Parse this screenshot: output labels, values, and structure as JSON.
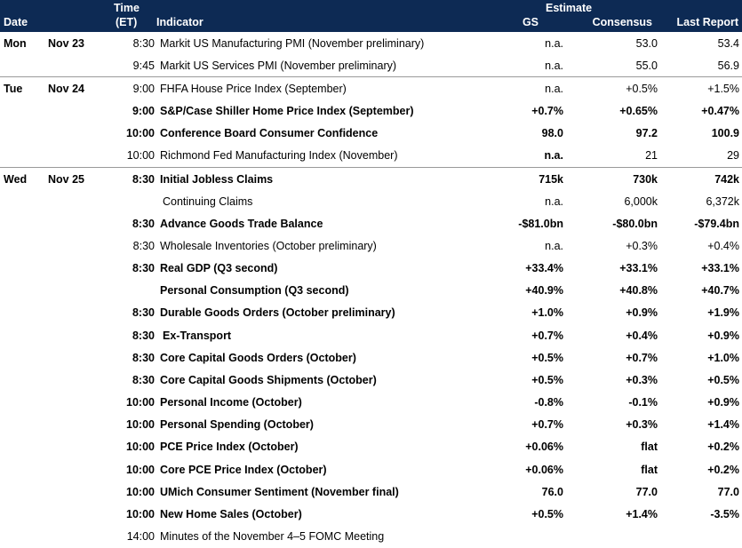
{
  "header": {
    "date": "Date",
    "time_line1": "Time",
    "time_line2": "(ET)",
    "indicator": "Indicator",
    "estimate": "Estimate",
    "gs": "GS",
    "consensus": "Consensus",
    "last_report": "Last Report"
  },
  "rows": [
    {
      "day": "Mon",
      "date": "Nov 23",
      "time": "8:30",
      "indicator": "Markit US Manufacturing PMI (November preliminary)",
      "gs": "n.a.",
      "consensus": "53.0",
      "last": "53.4",
      "bold": false,
      "indent": false
    },
    {
      "day": "",
      "date": "",
      "time": "9:45",
      "indicator": "Markit US Services PMI (November preliminary)",
      "gs": "n.a.",
      "consensus": "55.0",
      "last": "56.9",
      "bold": false,
      "indent": false
    },
    {
      "day": "Tue",
      "date": "Nov 24",
      "time": "9:00",
      "indicator": "FHFA House Price Index (September)",
      "gs": "n.a.",
      "consensus": "+0.5%",
      "last": "+1.5%",
      "bold": false,
      "indent": false
    },
    {
      "day": "",
      "date": "",
      "time": "9:00",
      "indicator": "S&P/Case Shiller Home Price Index (September)",
      "gs": "+0.7%",
      "consensus": "+0.65%",
      "last": "+0.47%",
      "bold": true,
      "indent": false
    },
    {
      "day": "",
      "date": "",
      "time": "10:00",
      "indicator": "Conference Board Consumer Confidence",
      "gs": "98.0",
      "consensus": "97.2",
      "last": "100.9",
      "bold": true,
      "indent": false
    },
    {
      "day": "",
      "date": "",
      "time": "10:00",
      "indicator": "Richmond Fed Manufacturing Index (November)",
      "gs": "n.a.",
      "consensus": "21",
      "last": "29",
      "bold": false,
      "indent": false,
      "gs_bold": true
    },
    {
      "day": "Wed",
      "date": "Nov 25",
      "time": "8:30",
      "indicator": "Initial Jobless Claims",
      "gs": "715k",
      "consensus": "730k",
      "last": "742k",
      "bold": true,
      "indent": false
    },
    {
      "day": "",
      "date": "",
      "time": "",
      "indicator": "Continuing Claims",
      "gs": "n.a.",
      "consensus": "6,000k",
      "last": "6,372k",
      "bold": false,
      "indent": true
    },
    {
      "day": "",
      "date": "",
      "time": "8:30",
      "indicator": "Advance Goods Trade Balance",
      "gs": "-$81.0bn",
      "consensus": "-$80.0bn",
      "last": "-$79.4bn",
      "bold": true,
      "indent": false
    },
    {
      "day": "",
      "date": "",
      "time": "8:30",
      "indicator": "Wholesale Inventories (October preliminary)",
      "gs": "n.a.",
      "consensus": "+0.3%",
      "last": "+0.4%",
      "bold": false,
      "indent": false
    },
    {
      "day": "",
      "date": "",
      "time": "8:30",
      "indicator": "Real GDP (Q3 second)",
      "gs": "+33.4%",
      "consensus": "+33.1%",
      "last": "+33.1%",
      "bold": true,
      "indent": false
    },
    {
      "day": "",
      "date": "",
      "time": "",
      "indicator": "Personal Consumption (Q3 second)",
      "gs": "+40.9%",
      "consensus": "+40.8%",
      "last": "+40.7%",
      "bold": true,
      "indent": false
    },
    {
      "day": "",
      "date": "",
      "time": "8:30",
      "indicator": "Durable Goods Orders (October preliminary)",
      "gs": "+1.0%",
      "consensus": "+0.9%",
      "last": "+1.9%",
      "bold": true,
      "indent": false
    },
    {
      "day": "",
      "date": "",
      "time": "8:30",
      "indicator": "Ex-Transport",
      "gs": "+0.7%",
      "consensus": "+0.4%",
      "last": "+0.9%",
      "bold": true,
      "indent": true
    },
    {
      "day": "",
      "date": "",
      "time": "8:30",
      "indicator": "Core Capital Goods Orders (October)",
      "gs": "+0.5%",
      "consensus": "+0.7%",
      "last": "+1.0%",
      "bold": true,
      "indent": false
    },
    {
      "day": "",
      "date": "",
      "time": "8:30",
      "indicator": "Core Capital Goods Shipments (October)",
      "gs": "+0.5%",
      "consensus": "+0.3%",
      "last": "+0.5%",
      "bold": true,
      "indent": false
    },
    {
      "day": "",
      "date": "",
      "time": "10:00",
      "indicator": "Personal Income (October)",
      "gs": "-0.8%",
      "consensus": "-0.1%",
      "last": "+0.9%",
      "bold": true,
      "indent": false
    },
    {
      "day": "",
      "date": "",
      "time": "10:00",
      "indicator": "Personal Spending (October)",
      "gs": "+0.7%",
      "consensus": "+0.3%",
      "last": "+1.4%",
      "bold": true,
      "indent": false
    },
    {
      "day": "",
      "date": "",
      "time": "10:00",
      "indicator": "PCE Price Index (October)",
      "gs": "+0.06%",
      "consensus": "flat",
      "last": "+0.2%",
      "bold": true,
      "indent": false
    },
    {
      "day": "",
      "date": "",
      "time": "10:00",
      "indicator": "Core PCE Price Index (October)",
      "gs": "+0.06%",
      "consensus": "flat",
      "last": "+0.2%",
      "bold": true,
      "indent": false
    },
    {
      "day": "",
      "date": "",
      "time": "10:00",
      "indicator": "UMich Consumer Sentiment (November final)",
      "gs": "76.0",
      "consensus": "77.0",
      "last": "77.0",
      "bold": true,
      "indent": false
    },
    {
      "day": "",
      "date": "",
      "time": "10:00",
      "indicator": "New Home Sales (October)",
      "gs": "+0.5%",
      "consensus": "+1.4%",
      "last": "-3.5%",
      "bold": true,
      "indent": false
    },
    {
      "day": "",
      "date": "",
      "time": "14:00",
      "indicator": "Minutes of the November 4–5 FOMC Meeting",
      "gs": "",
      "consensus": "",
      "last": "",
      "bold": false,
      "indent": false
    }
  ]
}
